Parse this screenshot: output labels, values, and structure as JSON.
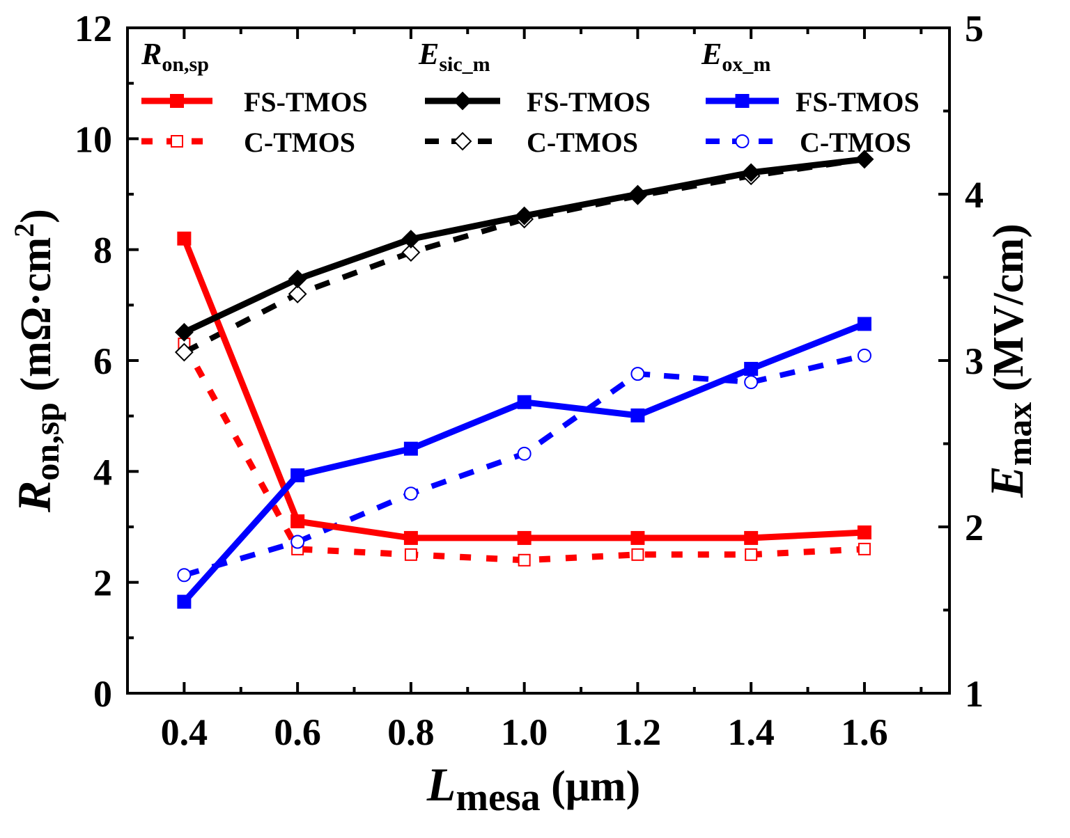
{
  "chart_data": {
    "type": "line",
    "x": [
      0.4,
      0.6,
      0.8,
      1.0,
      1.2,
      1.4,
      1.6
    ],
    "xlim": [
      0.3,
      1.75
    ],
    "ylim_left": [
      0,
      12
    ],
    "ylim_right": [
      1,
      5
    ],
    "x_ticks": [
      "0.4",
      "0.6",
      "0.8",
      "1.0",
      "1.2",
      "1.4",
      "1.6"
    ],
    "y_left_ticks": [
      "0",
      "2",
      "4",
      "6",
      "8",
      "10",
      "12"
    ],
    "y_right_ticks": [
      "1",
      "2",
      "3",
      "4",
      "5"
    ],
    "xlabel": {
      "main": "L",
      "sub": "mesa",
      "unit": " (μm)"
    },
    "ylabel_left": {
      "main": "R",
      "sub": "on,sp",
      "unit": " (mΩ·cm",
      "sup": "2",
      "close": ")"
    },
    "ylabel_right": {
      "main": "E",
      "sub": "max",
      "unit": " (MV/cm)"
    },
    "legend": {
      "groups": [
        {
          "head_main": "R",
          "head_sub": "on,sp"
        },
        {
          "head_main": "E",
          "head_sub": "sic_m"
        },
        {
          "head_main": "E",
          "head_sub": "ox_m"
        }
      ],
      "labels": [
        "FS-TMOS",
        "C-TMOS",
        "FS-TMOS",
        "C-TMOS",
        "FS-TMOS",
        "C-TMOS"
      ]
    },
    "series": [
      {
        "name": "Ron,sp FS-TMOS",
        "axis": "left",
        "color": "#ff0000",
        "dash": "solid",
        "marker": "square-filled",
        "values": [
          8.2,
          3.1,
          2.8,
          2.8,
          2.8,
          2.8,
          2.9
        ]
      },
      {
        "name": "Ron,sp C-TMOS",
        "axis": "left",
        "color": "#ff0000",
        "dash": "dot",
        "marker": "square-open",
        "values": [
          6.3,
          2.6,
          2.5,
          2.4,
          2.5,
          2.5,
          2.6
        ]
      },
      {
        "name": "Esic_m FS-TMOS",
        "axis": "right",
        "color": "#000000",
        "dash": "solid",
        "marker": "diamond-filled",
        "values": [
          3.17,
          3.49,
          3.73,
          3.87,
          4.0,
          4.13,
          4.21
        ]
      },
      {
        "name": "Esic_m C-TMOS",
        "axis": "right",
        "color": "#000000",
        "dash": "dash",
        "marker": "diamond-open",
        "values": [
          3.05,
          3.4,
          3.65,
          3.85,
          3.99,
          4.11,
          4.21
        ]
      },
      {
        "name": "Eox_m FS-TMOS",
        "axis": "right",
        "color": "#0000ff",
        "dash": "solid",
        "marker": "square-filled",
        "values": [
          1.55,
          2.31,
          2.47,
          2.75,
          2.67,
          2.95,
          3.22
        ]
      },
      {
        "name": "Eox_m C-TMOS",
        "axis": "right",
        "color": "#0000ff",
        "dash": "dash",
        "marker": "circle-open",
        "values": [
          1.71,
          1.91,
          2.2,
          2.44,
          2.92,
          2.87,
          3.03
        ]
      }
    ]
  }
}
